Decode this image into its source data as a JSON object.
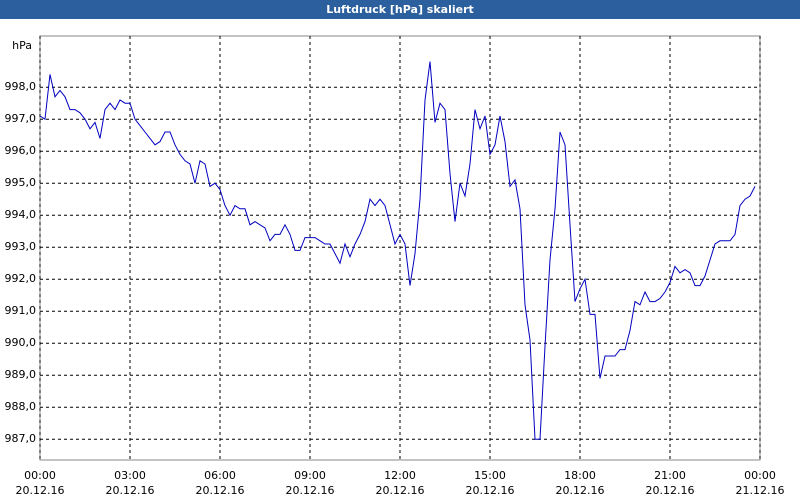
{
  "chart_data": {
    "type": "line",
    "title": "Luftdruck [hPa] skaliert",
    "y_label": "hPa",
    "xlim": [
      0,
      1440
    ],
    "ylim": [
      986.35,
      999.6
    ],
    "grid": true,
    "xticks": [
      {
        "value": 0,
        "label": "00:00"
      },
      {
        "value": 180,
        "label": "03:00"
      },
      {
        "value": 360,
        "label": "06:00"
      },
      {
        "value": 540,
        "label": "09:00"
      },
      {
        "value": 720,
        "label": "12:00"
      },
      {
        "value": 900,
        "label": "15:00"
      },
      {
        "value": 1080,
        "label": "18:00"
      },
      {
        "value": 1260,
        "label": "21:00"
      },
      {
        "value": 1440,
        "label": "00:00"
      }
    ],
    "xtick_dates": [
      "20.12.16",
      "20.12.16",
      "20.12.16",
      "20.12.16",
      "20.12.16",
      "20.12.16",
      "20.12.16",
      "20.12.16",
      "21.12.16"
    ],
    "yticks": [
      {
        "value": 987,
        "label": "987,0"
      },
      {
        "value": 988,
        "label": "988,0"
      },
      {
        "value": 989,
        "label": "989,0"
      },
      {
        "value": 990,
        "label": "990,0"
      },
      {
        "value": 991,
        "label": "991,0"
      },
      {
        "value": 992,
        "label": "992,0"
      },
      {
        "value": 993,
        "label": "993,0"
      },
      {
        "value": 994,
        "label": "994,0"
      },
      {
        "value": 995,
        "label": "995,0"
      },
      {
        "value": 996,
        "label": "996,0"
      },
      {
        "value": 997,
        "label": "997,0"
      },
      {
        "value": 998,
        "label": "998,0"
      }
    ],
    "x": [
      0,
      10,
      20,
      30,
      40,
      50,
      60,
      70,
      80,
      90,
      100,
      110,
      120,
      130,
      140,
      150,
      160,
      170,
      180,
      190,
      200,
      210,
      220,
      230,
      240,
      250,
      260,
      270,
      280,
      290,
      300,
      310,
      320,
      330,
      340,
      350,
      360,
      370,
      380,
      390,
      400,
      410,
      420,
      430,
      440,
      450,
      460,
      470,
      480,
      490,
      500,
      510,
      520,
      530,
      540,
      550,
      560,
      570,
      580,
      590,
      600,
      610,
      620,
      630,
      640,
      650,
      660,
      670,
      680,
      690,
      700,
      710,
      720,
      730,
      740,
      750,
      760,
      770,
      780,
      790,
      800,
      810,
      820,
      830,
      840,
      850,
      860,
      870,
      880,
      890,
      900,
      910,
      920,
      930,
      940,
      950,
      960,
      970,
      980,
      990,
      1000,
      1010,
      1020,
      1030,
      1040,
      1050,
      1060,
      1070,
      1080,
      1090,
      1100,
      1110,
      1120,
      1130,
      1140,
      1150,
      1160,
      1170,
      1180,
      1190,
      1200,
      1210,
      1220,
      1230,
      1240,
      1250,
      1260,
      1270,
      1280,
      1290,
      1300,
      1310,
      1320,
      1330,
      1340,
      1350,
      1360,
      1370,
      1380,
      1390,
      1400,
      1410,
      1420,
      1430
    ],
    "series": [
      {
        "color": "#0000c0",
        "values": [
          997.1,
          997.0,
          998.4,
          997.7,
          997.9,
          997.7,
          997.3,
          997.3,
          997.2,
          997.0,
          996.7,
          996.9,
          996.4,
          997.3,
          997.5,
          997.3,
          997.6,
          997.5,
          997.5,
          997.0,
          996.8,
          996.6,
          996.4,
          996.2,
          996.3,
          996.6,
          996.6,
          996.2,
          995.9,
          995.7,
          995.6,
          995.0,
          995.7,
          995.6,
          994.9,
          995.0,
          994.8,
          994.3,
          994.0,
          994.3,
          994.2,
          994.2,
          993.7,
          993.8,
          993.7,
          993.6,
          993.2,
          993.4,
          993.4,
          993.7,
          993.4,
          992.9,
          992.9,
          993.3,
          993.3,
          993.3,
          993.2,
          993.1,
          993.1,
          992.8,
          992.5,
          993.1,
          992.7,
          993.1,
          993.4,
          993.8,
          994.5,
          994.3,
          994.5,
          994.3,
          993.7,
          993.1,
          993.4,
          993.1,
          991.8,
          992.8,
          994.5,
          997.6,
          998.8,
          996.9,
          997.5,
          997.3,
          995.3,
          993.8,
          995.0,
          994.6,
          995.6,
          997.3,
          996.7,
          997.1,
          995.9,
          996.2,
          997.1,
          996.3,
          994.9,
          995.1,
          994.2,
          991.2,
          990.1,
          987.0,
          987.0,
          989.9,
          992.6,
          994.2,
          996.6,
          996.2,
          993.7,
          991.3,
          991.7,
          992.0,
          990.9,
          990.9,
          988.9,
          989.6,
          989.6,
          989.6,
          989.8,
          989.8,
          990.4,
          991.3,
          991.2,
          991.6,
          991.3,
          991.3,
          991.4,
          991.6,
          991.9,
          992.4,
          992.2,
          992.3,
          992.2,
          991.8,
          991.8,
          992.1,
          992.6,
          993.1,
          993.2,
          993.2,
          993.2,
          993.4,
          994.3,
          994.5,
          994.6,
          994.9
        ]
      }
    ]
  }
}
